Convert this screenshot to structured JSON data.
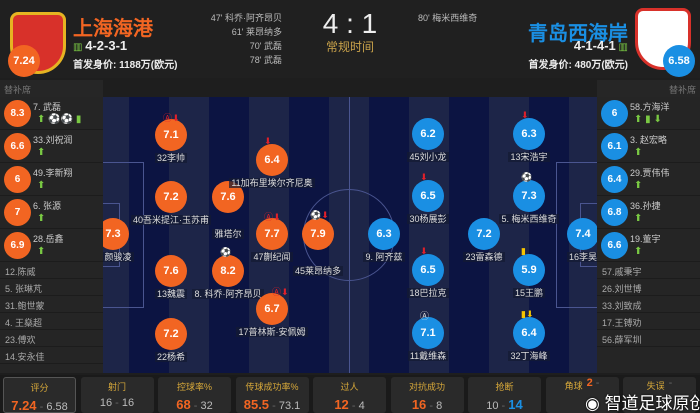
{
  "home": {
    "name": "上海海港",
    "formation": "4-2-3-1",
    "value": "首发身价: 1188万(欧元)",
    "rating": "7.24",
    "color": "#f26522",
    "goals": [
      "47' 科乔·阿齐昂贝",
      "61' 莱昂纳多",
      "70' 武磊",
      "78' 武磊"
    ],
    "bench_title": "替补席",
    "subs": [
      {
        "rating": "8.3",
        "name": "7. 武磊",
        "icons": "⬆ ⚽⚽ ▮"
      },
      {
        "rating": "6.6",
        "name": "33.刘祝润",
        "icons": "⬆"
      },
      {
        "rating": "6",
        "name": "49.李新翔",
        "icons": "⬆"
      },
      {
        "rating": "7",
        "name": "6. 张源",
        "icons": "⬆"
      },
      {
        "rating": "6.9",
        "name": "28.岳鑫",
        "icons": "⬆"
      }
    ],
    "bench": [
      "12.陈威",
      "5. 张琳芃",
      "31.鲍世蒙",
      "4. 王燊超",
      "23.傅欢",
      "14.安永佳"
    ],
    "players": [
      {
        "rating": "7.3",
        "name": "1. 颜骏凌"
      },
      {
        "rating": "7.1",
        "name": "32李帅",
        "marks": "Ⓐ⬇"
      },
      {
        "rating": "7.2",
        "name": "40吾米提江·玉苏甫"
      },
      {
        "rating": "7.6",
        "name": "雅塔尔"
      },
      {
        "rating": "6.4",
        "name": "11加布里埃尔齐尼奥",
        "marks": "⬇"
      },
      {
        "rating": "7.7",
        "name": "47蒯纪闻",
        "marks": "Ⓐ⬇"
      },
      {
        "rating": "7.9",
        "name": "45莱昂纳多",
        "marks": "⚽⬇"
      },
      {
        "rating": "7.6",
        "name": "13魏震"
      },
      {
        "rating": "8.2",
        "name": "8. 科乔·阿齐昂贝",
        "marks": "⚽"
      },
      {
        "rating": "6.7",
        "name": "17普林斯·安佩姆",
        "marks": "Ⓐ⬇"
      },
      {
        "rating": "7.2",
        "name": "22杨希"
      }
    ]
  },
  "away": {
    "name": "青岛西海岸",
    "formation": "4-1-4-1",
    "value": "首发身价: 480万(欧元)",
    "rating": "6.58",
    "color": "#1a8fe3",
    "goals": [
      "80' 梅米西维奇"
    ],
    "bench_title": "替补席",
    "subs": [
      {
        "rating": "6",
        "name": "58.方海洋",
        "icons": "⬆ ▮ ⬇"
      },
      {
        "rating": "6.1",
        "name": "3. 赵宏略",
        "icons": "⬆"
      },
      {
        "rating": "6.4",
        "name": "29.贾伟伟",
        "icons": "⬆"
      },
      {
        "rating": "6.8",
        "name": "36.孙捷",
        "icons": "⬆"
      },
      {
        "rating": "6.6",
        "name": "19.董宇",
        "icons": "⬆"
      }
    ],
    "bench": [
      "57.戚秉宇",
      "26.刘世博",
      "33.刘致成",
      "17.王镈劝",
      "56.薛军圳"
    ],
    "players": [
      {
        "rating": "6.2",
        "name": "45刘小龙"
      },
      {
        "rating": "6.3",
        "name": "13宋浩宇",
        "marks": "⬇"
      },
      {
        "rating": "6.5",
        "name": "30杨展彭",
        "marks": "⬇"
      },
      {
        "rating": "7.3",
        "name": "5. 梅米西维奇",
        "marks": "⚽"
      },
      {
        "rating": "6.3",
        "name": "9. 阿齐兹"
      },
      {
        "rating": "7.2",
        "name": "23雷森德"
      },
      {
        "rating": "7.4",
        "name": "16李昊"
      },
      {
        "rating": "6.5",
        "name": "18巴拉克",
        "marks": "⬇"
      },
      {
        "rating": "5.9",
        "name": "15王鹏",
        "marks": "▮"
      },
      {
        "rating": "7.1",
        "name": "11戴维森",
        "marks": "Ⓐ"
      },
      {
        "rating": "6.4",
        "name": "32丁海峰",
        "marks": "▮⬇"
      }
    ]
  },
  "score": "4 : 1",
  "status": "常规时间",
  "stats": [
    {
      "title": "评分",
      "home": "7.24",
      "away": "6.58",
      "lead": "home"
    },
    {
      "title": "射门",
      "home": "16",
      "away": "16",
      "lead": ""
    },
    {
      "title": "控球率%",
      "home": "68",
      "away": "32",
      "lead": "home"
    },
    {
      "title": "传球成功率%",
      "home": "85.5",
      "away": "73.1",
      "lead": "home"
    },
    {
      "title": "过人",
      "home": "12",
      "away": "4",
      "lead": "home"
    },
    {
      "title": "对抗成功",
      "home": "16",
      "away": "8",
      "lead": "home"
    },
    {
      "title": "抢断",
      "home": "10",
      "away": "14",
      "lead": "away"
    },
    {
      "title": "角球",
      "home": "2",
      "away": "",
      "lead": "home"
    },
    {
      "title": "失误",
      "home": "",
      "away": "",
      "lead": ""
    }
  ],
  "watermark": "智道足球原创"
}
